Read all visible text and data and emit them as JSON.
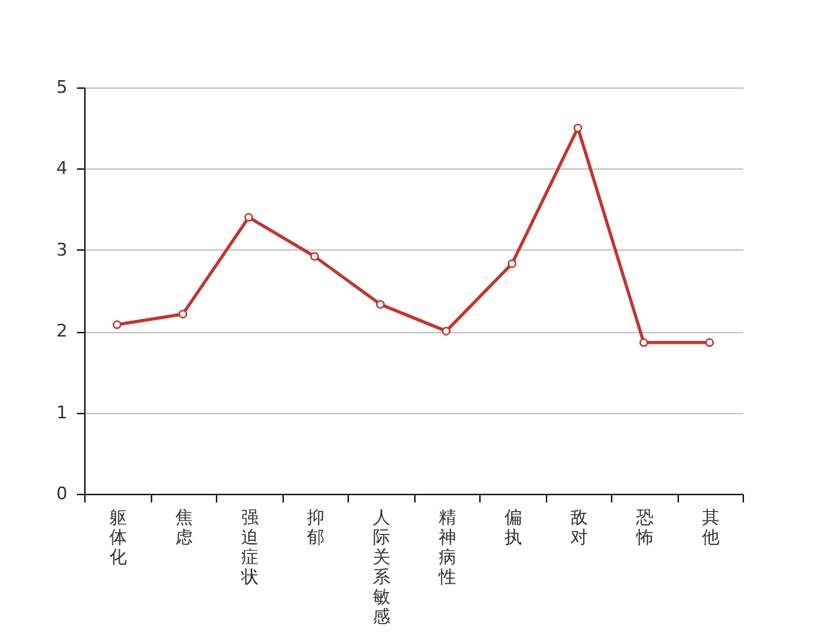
{
  "chart_data": {
    "type": "line",
    "categories": [
      "躯体化",
      "焦虑",
      "强迫症状",
      "抑郁",
      "人际关系敏感",
      "精神病性",
      "偏执",
      "敌对",
      "恐怖",
      "其他"
    ],
    "series": [
      {
        "color": "#c23531",
        "values": [
          2.08,
          2.21,
          3.4,
          2.92,
          2.33,
          2.0,
          2.83,
          4.5,
          1.86,
          1.86
        ]
      }
    ],
    "ylim": [
      0,
      5
    ],
    "yticks": [
      0,
      1,
      2,
      3,
      4,
      5
    ],
    "grid": "y",
    "marker": "circle",
    "line_style": "solid"
  }
}
